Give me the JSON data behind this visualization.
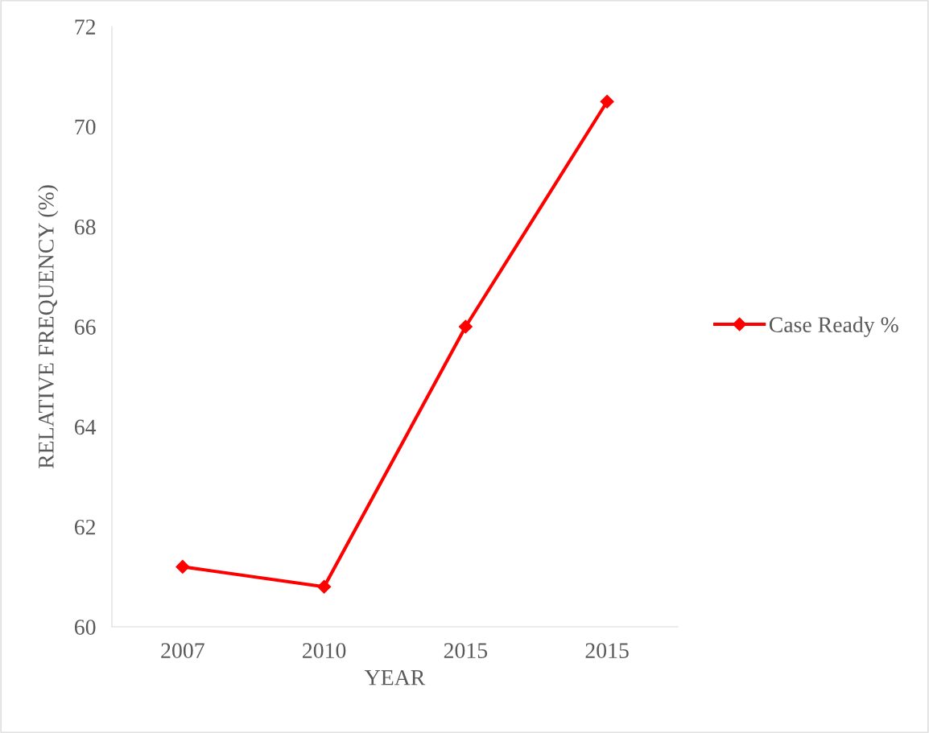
{
  "chart_data": {
    "type": "line",
    "xlabel": "YEAR",
    "ylabel": "RELATIVE FREQUENCY (%)",
    "categories": [
      "2007",
      "2010",
      "2015",
      "2015"
    ],
    "series": [
      {
        "name": "Case Ready %",
        "color": "#ff0000",
        "values": [
          61.2,
          60.8,
          66.0,
          70.5
        ]
      }
    ],
    "ylim": [
      60,
      72
    ],
    "yticks": [
      60,
      62,
      64,
      66,
      68,
      70,
      72
    ],
    "grid": false,
    "legend": "right",
    "marker": "diamond",
    "line_style": "solid"
  }
}
